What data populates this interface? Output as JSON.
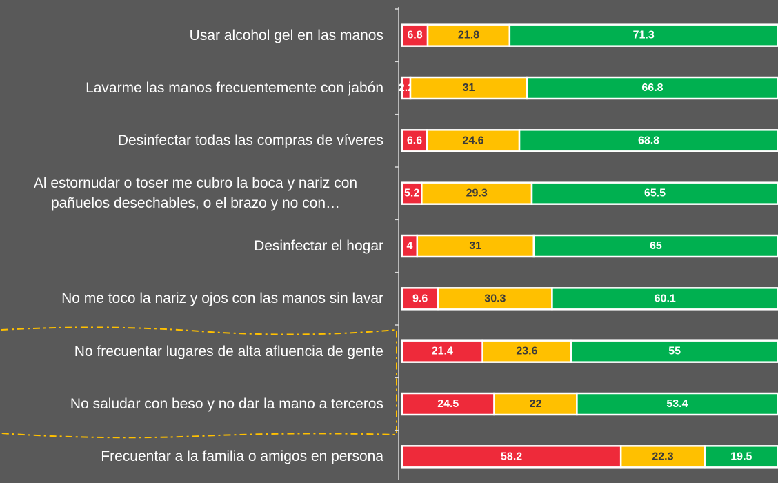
{
  "chart_data": {
    "type": "stacked-bar-horizontal",
    "categories": [
      "Usar alcohol gel en las manos",
      "Lavarme las manos frecuentemente con jabón",
      "Desinfectar todas las compras de víveres",
      "Al estornudar o toser me cubro la boca y nariz con pañuelos desechables, o el brazo y no con…",
      "Desinfectar el hogar",
      "No me toco la nariz y ojos con las manos sin lavar",
      "No frecuentar lugares de alta afluencia de gente",
      "No saludar con beso y no dar la mano a terceros",
      "Frecuentar a la familia o amigos en persona"
    ],
    "series": [
      {
        "color": "#ee2a3a",
        "label_color": "#ffffff",
        "values": [
          6.8,
          2.2,
          6.6,
          5.2,
          4,
          9.6,
          21.4,
          24.5,
          58.2
        ]
      },
      {
        "color": "#ffc000",
        "label_color": "#3a3a3a",
        "values": [
          21.8,
          31,
          24.6,
          29.3,
          31,
          30.3,
          23.6,
          22,
          22.3
        ]
      },
      {
        "color": "#00b050",
        "label_color": "#ffffff",
        "values": [
          71.3,
          66.8,
          68.8,
          65.5,
          65,
          60.1,
          55,
          53.4,
          19.5
        ]
      }
    ],
    "xlim": [
      0,
      100
    ]
  }
}
